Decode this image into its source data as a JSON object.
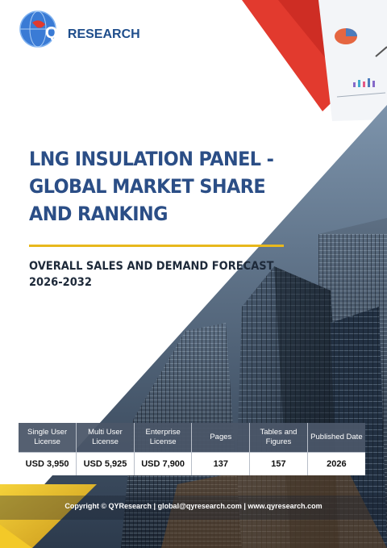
{
  "brand": {
    "mark": "QY",
    "rest": "RESEARCH",
    "primary_color": "#1f4e8c",
    "accent_color": "#e8b81c"
  },
  "report": {
    "title": "LNG INSULATION PANEL - GLOBAL MARKET SHARE AND RANKING",
    "subtitle": "OVERALL SALES AND DEMAND FORECAST 2026-2032"
  },
  "pricing": {
    "headers": {
      "single_user": "Single User License",
      "multi_user": "Multi User License",
      "enterprise": "Enterprise License",
      "pages": "Pages",
      "tables": "Tables and Figures",
      "published": "Published Date"
    },
    "values": {
      "single_user": "USD 3,950",
      "multi_user": "USD 5,925",
      "enterprise": "USD 7,900",
      "pages": "137",
      "tables": "157",
      "published": "2026"
    }
  },
  "footer": {
    "text": "Copyright © QYResearch | global@qyresearch.com | www.qyresearch.com"
  }
}
